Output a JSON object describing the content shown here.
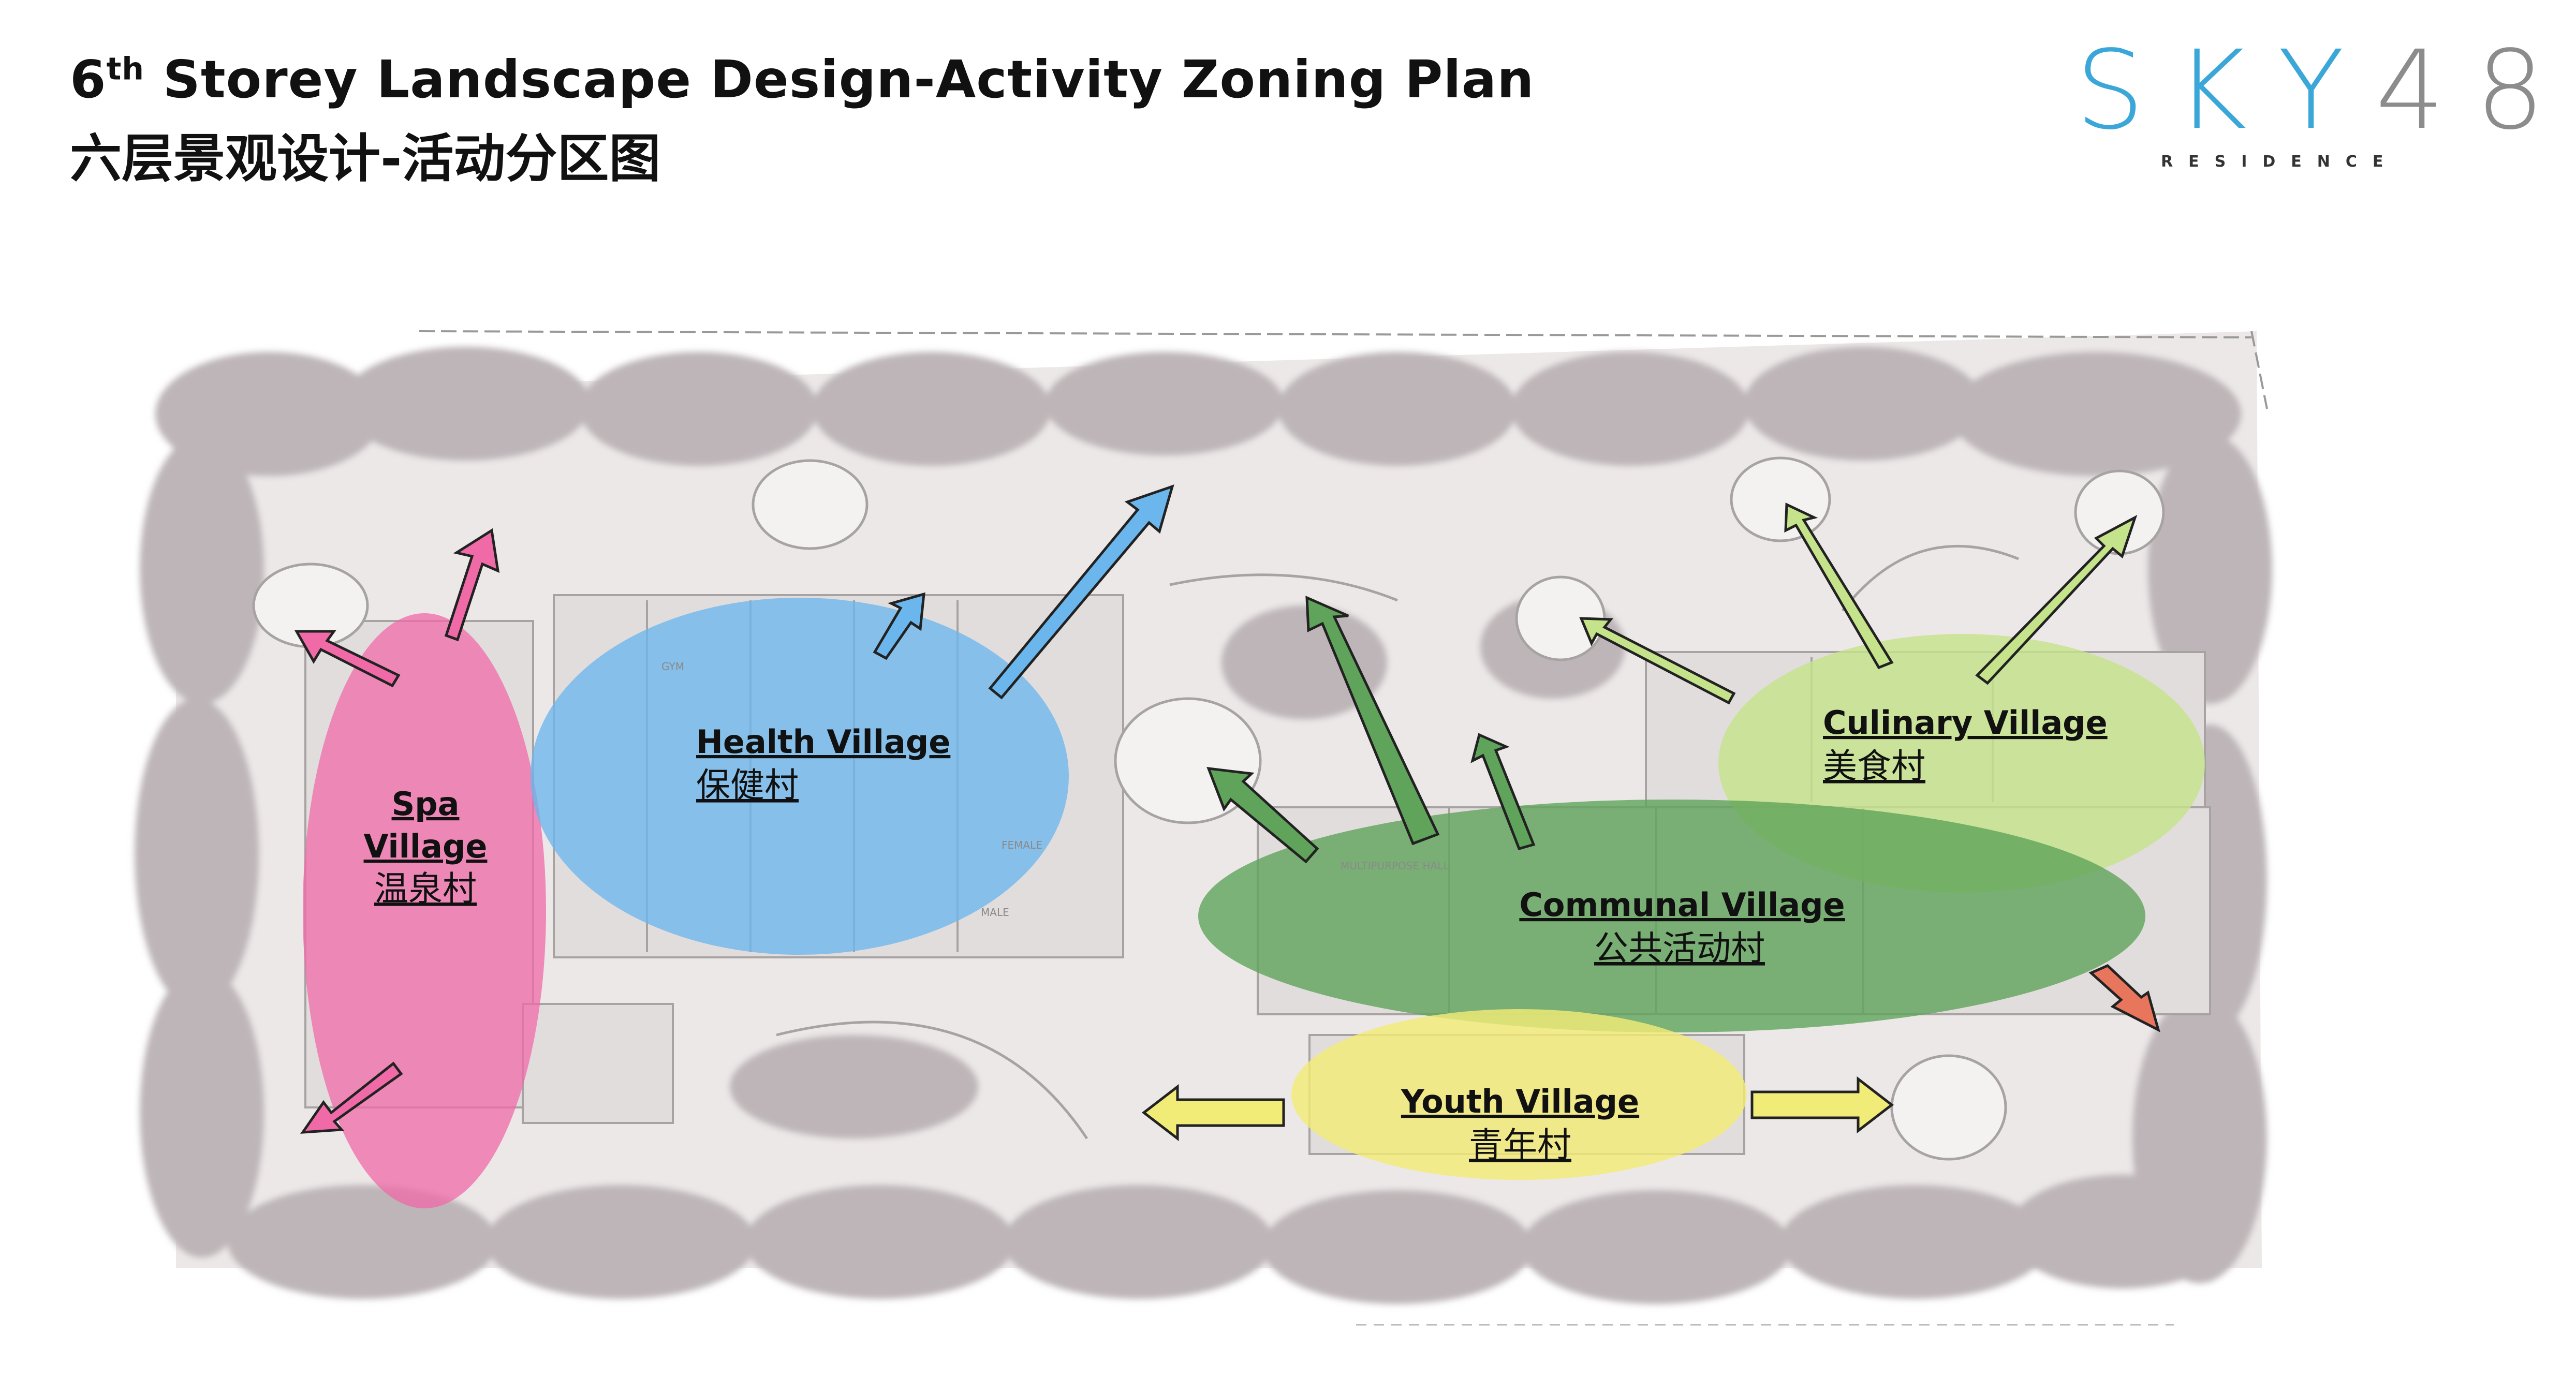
{
  "header": {
    "title_prefix": "6",
    "title_sup": "th",
    "title_rest": " Storey Landscape Design-Activity Zoning Plan",
    "title_cn": "六层景观设计-活动分区图"
  },
  "logo": {
    "sky": "SKY",
    "num": "48",
    "sub": "RESIDENCE"
  },
  "zones": {
    "spa": {
      "line1": "Spa",
      "line2": "Village",
      "cn": "温泉村",
      "color": "#f06aa8"
    },
    "health": {
      "line1": "Health Village",
      "cn": "保健村",
      "color": "#6bb6ec"
    },
    "culinary": {
      "line1": "Culinary Village",
      "cn": "美食村",
      "color": "#c5e38a"
    },
    "communal": {
      "line1": "Communal Village",
      "cn": "公共活动村",
      "color": "#5fa45a"
    },
    "youth": {
      "line1": "Youth Village",
      "cn": "青年村",
      "color": "#f1ec78"
    }
  },
  "plan_labels": {
    "gym": "GYM",
    "multipurpose": "MULTIPURPOSE HALL",
    "female": "FEMALE",
    "male": "MALE"
  }
}
